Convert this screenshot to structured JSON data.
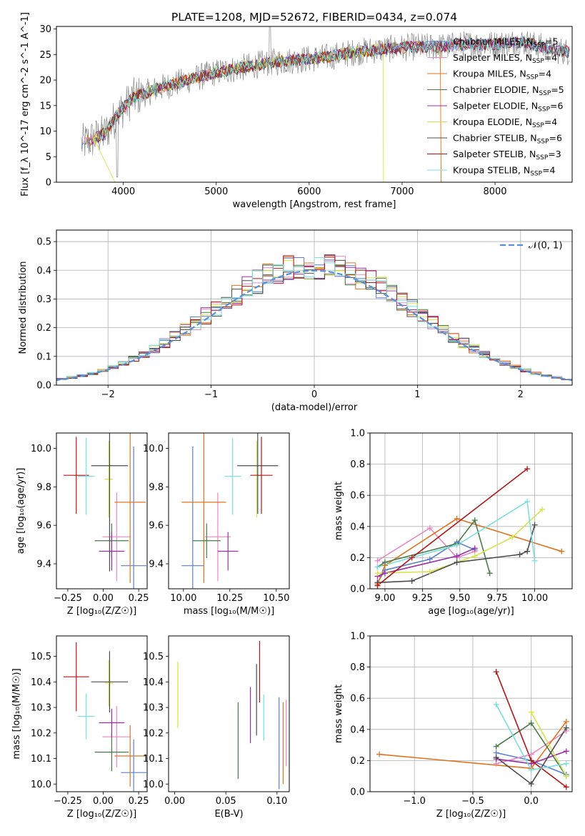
{
  "figure_title": "PLATE=1208, MJD=52672, FIBERID=0434, z=0.074",
  "colors": {
    "Chabrier MILES": "#5b7fd4",
    "Salpeter MILES": "#e589c3",
    "Kroupa MILES": "#e0731f",
    "Chabrier ELODIE": "#4a7a4a",
    "Salpeter ELODIE": "#9b2ca8",
    "Kroupa ELODIE": "#d6e34a",
    "Chabrier STELIB": "#4d4d4d",
    "Salpeter STELIB": "#b01616",
    "Kroupa STELIB": "#7adede"
  },
  "chart_data": [
    {
      "id": "spectrum",
      "type": "line",
      "title": "PLATE=1208, MJD=52672, FIBERID=0434, z=0.074",
      "xlabel": "wavelength [Angstrom, rest frame]",
      "ylabel": "Flux [f_λ 10^-17 erg cm^-2 s^-1 A^-1]",
      "xlim": [
        3280,
        8830
      ],
      "ylim": [
        0,
        30.5
      ],
      "xticks": [
        4000,
        5000,
        6000,
        7000,
        8000
      ],
      "yticks": [
        0,
        5,
        10,
        15,
        20,
        25,
        30
      ],
      "legend_position": "right",
      "continuum": {
        "x": [
          3550,
          3800,
          3950,
          4100,
          4400,
          4700,
          5000,
          5300,
          5600,
          5900,
          6200,
          6500,
          6800,
          7100,
          7400,
          7700,
          8000,
          8300,
          8600,
          8800
        ],
        "y": [
          7.5,
          9.5,
          13.5,
          16.5,
          18.5,
          20.0,
          21.5,
          22.5,
          23.5,
          24.0,
          24.5,
          25.5,
          26.0,
          26.5,
          26.5,
          27.0,
          27.0,
          27.5,
          26.0,
          25.5
        ]
      },
      "legend": [
        {
          "label": "Chabrier MILES, N",
          "ssp": "5",
          "key": "Chabrier MILES"
        },
        {
          "label": "Salpeter MILES, N",
          "ssp": "4",
          "key": "Salpeter MILES"
        },
        {
          "label": "Kroupa MILES, N",
          "ssp": "4",
          "key": "Kroupa MILES"
        },
        {
          "label": "Chabrier ELODIE, N",
          "ssp": "5",
          "key": "Chabrier ELODIE"
        },
        {
          "label": "Salpeter ELODIE, N",
          "ssp": "6",
          "key": "Salpeter ELODIE"
        },
        {
          "label": "Kroupa ELODIE, N",
          "ssp": "4",
          "key": "Kroupa ELODIE"
        },
        {
          "label": "Chabrier STELIB, N",
          "ssp": "6",
          "key": "Chabrier STELIB"
        },
        {
          "label": "Salpeter STELIB, N",
          "ssp": "3",
          "key": "Salpeter STELIB"
        },
        {
          "label": "Kroupa STELIB, N",
          "ssp": "4",
          "key": "Kroupa STELIB"
        }
      ],
      "ssp_subscript": "SSP"
    },
    {
      "id": "residuals",
      "type": "histogram",
      "xlabel": "(data-model)/error",
      "ylabel": "Normed distribution",
      "xlim": [
        -2.5,
        2.5
      ],
      "ylim": [
        0,
        0.54
      ],
      "xticks": [
        -2,
        -1,
        0,
        1,
        2
      ],
      "yticks": [
        0.0,
        0.1,
        0.2,
        0.3,
        0.4,
        0.5
      ],
      "grid": true,
      "bin_width": 0.1,
      "legend": [
        "𝒩(0, 1)"
      ],
      "legend_position": "top-right",
      "gaussian": {
        "mean": 0,
        "sigma": 1,
        "color": "#5b8ed8"
      }
    },
    {
      "id": "age_vs_z",
      "type": "errorbar",
      "xlabel": "Z [log₁₀(Z/Z☉)]",
      "ylabel": "age  [log₁₀(age/yr)]",
      "xlim": [
        -0.33,
        0.31
      ],
      "ylim": [
        9.27,
        10.08
      ],
      "xticks": [
        -0.25,
        0.0,
        0.25
      ],
      "xticklabels": [
        "−0.25",
        "0.00",
        "0.25"
      ],
      "yticks": [
        9.4,
        9.6,
        9.8,
        10.0
      ],
      "points": [
        {
          "model": "Chabrier MILES",
          "x": 0.215,
          "y": 9.39,
          "xerr": 0.09,
          "yerr": 0.62
        },
        {
          "model": "Salpeter MILES",
          "x": 0.095,
          "y": 9.54,
          "xerr": 0.1,
          "yerr": 0.23
        },
        {
          "model": "Kroupa MILES",
          "x": 0.19,
          "y": 9.72,
          "xerr": 0.11,
          "yerr": 0.42
        },
        {
          "model": "Chabrier ELODIE",
          "x": 0.06,
          "y": 9.52,
          "xerr": 0.12,
          "yerr": 0.09
        },
        {
          "model": "Salpeter ELODIE",
          "x": 0.06,
          "y": 9.465,
          "xerr": 0.09,
          "yerr": 0.1
        },
        {
          "model": "Kroupa ELODIE",
          "x": 0.04,
          "y": 9.84,
          "xerr": 0.03,
          "yerr": 0.2
        },
        {
          "model": "Chabrier STELIB",
          "x": 0.045,
          "y": 9.91,
          "xerr": 0.13,
          "yerr": 0.55
        },
        {
          "model": "Salpeter STELIB",
          "x": -0.19,
          "y": 9.86,
          "xerr": 0.09,
          "yerr": 0.2
        },
        {
          "model": "Kroupa STELIB",
          "x": -0.12,
          "y": 9.855,
          "xerr": 0.06,
          "yerr": 0.2
        }
      ]
    },
    {
      "id": "age_vs_mass",
      "type": "errorbar",
      "xlabel": "mass [log₁₀(M/M☉)]",
      "ylabel": "",
      "xlim": [
        9.92,
        10.57
      ],
      "ylim": [
        9.27,
        10.08
      ],
      "xticks": [
        10.0,
        10.25,
        10.5
      ],
      "xticklabels": [
        "10.00",
        "10.25",
        "10.50"
      ],
      "yticks": [
        9.4,
        9.6,
        9.8,
        10.0
      ],
      "points": [
        {
          "model": "Chabrier MILES",
          "x": 10.05,
          "y": 9.39,
          "xerr": 0.06,
          "yerr": 0.62
        },
        {
          "model": "Salpeter MILES",
          "x": 10.185,
          "y": 9.54,
          "xerr": 0.07,
          "yerr": 0.23
        },
        {
          "model": "Kroupa MILES",
          "x": 10.11,
          "y": 9.72,
          "xerr": 0.12,
          "yerr": 0.42
        },
        {
          "model": "Chabrier ELODIE",
          "x": 10.125,
          "y": 9.52,
          "xerr": 0.075,
          "yerr": 0.09
        },
        {
          "model": "Salpeter ELODIE",
          "x": 10.24,
          "y": 9.465,
          "xerr": 0.055,
          "yerr": 0.1
        },
        {
          "model": "Kroupa ELODIE",
          "x": 10.395,
          "y": 9.84,
          "xerr": 0.005,
          "yerr": 0.2
        },
        {
          "model": "Chabrier STELIB",
          "x": 10.4,
          "y": 9.91,
          "xerr": 0.11,
          "yerr": 0.25
        },
        {
          "model": "Salpeter STELIB",
          "x": 10.42,
          "y": 9.86,
          "xerr": 0.06,
          "yerr": 0.2
        },
        {
          "model": "Kroupa STELIB",
          "x": 10.265,
          "y": 9.855,
          "xerr": 0.045,
          "yerr": 0.2
        }
      ]
    },
    {
      "id": "mass_weight_vs_age",
      "type": "line",
      "xlabel": "age  [log₁₀(age/yr)]",
      "ylabel": "mass weight",
      "xlim": [
        8.9,
        10.25
      ],
      "ylim": [
        0,
        1.0
      ],
      "xticks": [
        9.0,
        9.25,
        9.5,
        9.75,
        10.0
      ],
      "xticklabels": [
        "9.00",
        "9.25",
        "9.50",
        "9.75",
        "10.00"
      ],
      "yticks": [
        0.0,
        0.2,
        0.4,
        0.6,
        0.8,
        1.0
      ],
      "grid": true,
      "series": [
        {
          "model": "Chabrier MILES",
          "x": [
            8.95,
            9.0,
            9.3,
            9.48,
            9.6
          ],
          "y": [
            0.04,
            0.12,
            0.19,
            0.3,
            0.25
          ]
        },
        {
          "model": "Salpeter MILES",
          "x": [
            8.95,
            9.3,
            9.48,
            9.6
          ],
          "y": [
            0.18,
            0.39,
            0.2,
            0.24
          ]
        },
        {
          "model": "Kroupa MILES",
          "x": [
            8.95,
            9.0,
            9.48,
            10.18
          ],
          "y": [
            0.03,
            0.15,
            0.45,
            0.24
          ]
        },
        {
          "model": "Chabrier ELODIE",
          "x": [
            8.95,
            9.0,
            9.48,
            9.6,
            9.7
          ],
          "y": [
            0.14,
            0.17,
            0.29,
            0.44,
            0.1
          ]
        },
        {
          "model": "Salpeter ELODIE",
          "x": [
            8.95,
            9.0,
            9.48,
            9.6
          ],
          "y": [
            0.08,
            0.1,
            0.21,
            0.26
          ]
        },
        {
          "model": "Kroupa ELODIE",
          "x": [
            8.95,
            9.3,
            9.6,
            9.85,
            10.05
          ],
          "y": [
            0.1,
            0.11,
            0.21,
            0.33,
            0.51
          ]
        },
        {
          "model": "Chabrier STELIB",
          "x": [
            8.95,
            9.18,
            9.48,
            9.9,
            9.95,
            10.0
          ],
          "y": [
            0.04,
            0.05,
            0.17,
            0.22,
            0.24,
            0.41
          ]
        },
        {
          "model": "Salpeter STELIB",
          "x": [
            8.95,
            9.18,
            9.95
          ],
          "y": [
            0.02,
            0.2,
            0.77
          ]
        },
        {
          "model": "Kroupa STELIB",
          "x": [
            8.95,
            9.48,
            9.95,
            10.0
          ],
          "y": [
            0.14,
            0.28,
            0.56,
            0.18
          ]
        }
      ]
    },
    {
      "id": "mass_vs_z",
      "type": "errorbar",
      "xlabel": "Z [log₁₀(Z/Z☉)]",
      "ylabel": "mass [log₁₀(M/M☉)]",
      "xlim": [
        -0.33,
        0.31
      ],
      "ylim": [
        9.97,
        10.58
      ],
      "xticks": [
        -0.25,
        0.0,
        0.25
      ],
      "xticklabels": [
        "−0.25",
        "0.00",
        "0.25"
      ],
      "yticks": [
        10.0,
        10.1,
        10.2,
        10.3,
        10.4,
        10.5
      ],
      "points": [
        {
          "model": "Chabrier MILES",
          "x": 0.215,
          "y": 10.045,
          "xerr": 0.09,
          "yerr": 0.13
        },
        {
          "model": "Salpeter MILES",
          "x": 0.095,
          "y": 10.185,
          "xerr": 0.1,
          "yerr": 0.12
        },
        {
          "model": "Kroupa MILES",
          "x": 0.19,
          "y": 10.11,
          "xerr": 0.11,
          "yerr": 0.12
        },
        {
          "model": "Chabrier ELODIE",
          "x": 0.06,
          "y": 10.125,
          "xerr": 0.12,
          "yerr": 0.075
        },
        {
          "model": "Salpeter ELODIE",
          "x": 0.06,
          "y": 10.24,
          "xerr": 0.09,
          "yerr": 0.055
        },
        {
          "model": "Kroupa ELODIE",
          "x": 0.04,
          "y": 10.395,
          "xerr": 0.03,
          "yerr": 0.09
        },
        {
          "model": "Chabrier STELIB",
          "x": 0.045,
          "y": 10.4,
          "xerr": 0.13,
          "yerr": 0.12
        },
        {
          "model": "Salpeter STELIB",
          "x": -0.19,
          "y": 10.42,
          "xerr": 0.09,
          "yerr": 0.135
        },
        {
          "model": "Kroupa STELIB",
          "x": -0.12,
          "y": 10.265,
          "xerr": 0.06,
          "yerr": 0.09
        }
      ]
    },
    {
      "id": "mass_vs_ebv",
      "type": "errorbar",
      "xlabel": "E(B-V)",
      "ylabel": "",
      "xlim": [
        -0.006,
        0.112
      ],
      "ylim": [
        9.97,
        10.58
      ],
      "xticks": [
        0.0,
        0.05,
        0.1
      ],
      "xticklabels": [
        "0.00",
        "0.05",
        "0.10"
      ],
      "yticks": [
        10.0,
        10.1,
        10.2,
        10.3,
        10.4,
        10.5
      ],
      "points": [
        {
          "model": "Chabrier MILES",
          "x": 0.102,
          "y": 10.16,
          "xerr": 0.0,
          "yerr": 0.18
        },
        {
          "model": "Salpeter MILES",
          "x": 0.109,
          "y": 10.2,
          "xerr": 0.0,
          "yerr": 0.13
        },
        {
          "model": "Kroupa MILES",
          "x": 0.106,
          "y": 10.16,
          "xerr": 0.0,
          "yerr": 0.16
        },
        {
          "model": "Chabrier ELODIE",
          "x": 0.062,
          "y": 10.17,
          "xerr": 0.0,
          "yerr": 0.15
        },
        {
          "model": "Salpeter ELODIE",
          "x": 0.074,
          "y": 10.27,
          "xerr": 0.0,
          "yerr": 0.11
        },
        {
          "model": "Kroupa ELODIE",
          "x": 0.003,
          "y": 10.35,
          "xerr": 0.0,
          "yerr": 0.13
        },
        {
          "model": "Chabrier STELIB",
          "x": 0.08,
          "y": 10.33,
          "xerr": 0.0,
          "yerr": 0.14
        },
        {
          "model": "Salpeter STELIB",
          "x": 0.083,
          "y": 10.44,
          "xerr": 0.0,
          "yerr": 0.12
        },
        {
          "model": "Kroupa STELIB",
          "x": 0.087,
          "y": 10.26,
          "xerr": 0.0,
          "yerr": 0.09
        }
      ]
    },
    {
      "id": "mass_weight_vs_z",
      "type": "line",
      "xlabel": "Z [log₁₀(Z/Z☉)]",
      "ylabel": "mass weight",
      "xlim": [
        -1.38,
        0.35
      ],
      "ylim": [
        0,
        1.0
      ],
      "xticks": [
        -1.0,
        -0.5,
        0.0
      ],
      "xticklabels": [
        "−1.0",
        "−0.5",
        "0.0"
      ],
      "yticks": [
        0.0,
        0.2,
        0.4,
        0.6,
        0.8,
        1.0
      ],
      "grid": true,
      "series": [
        {
          "model": "Chabrier MILES",
          "x": [
            -0.3,
            0.0,
            0.3
          ],
          "y": [
            0.25,
            0.2,
            0.11
          ]
        },
        {
          "model": "Salpeter MILES",
          "x": [
            -0.3,
            0.0,
            0.3
          ],
          "y": [
            0.18,
            0.24,
            0.39
          ]
        },
        {
          "model": "Kroupa MILES",
          "x": [
            -1.3,
            0.0,
            0.3
          ],
          "y": [
            0.24,
            0.15,
            0.45
          ]
        },
        {
          "model": "Chabrier ELODIE",
          "x": [
            -0.3,
            0.0,
            0.3
          ],
          "y": [
            0.29,
            0.44,
            0.1
          ]
        },
        {
          "model": "Salpeter ELODIE",
          "x": [
            -0.3,
            0.0,
            0.3
          ],
          "y": [
            0.21,
            0.18,
            0.26
          ]
        },
        {
          "model": "Kroupa ELODIE",
          "x": [
            0.0,
            0.3
          ],
          "y": [
            0.51,
            0.1
          ]
        },
        {
          "model": "Chabrier STELIB",
          "x": [
            -0.3,
            0.0,
            0.3
          ],
          "y": [
            0.22,
            0.05,
            0.41
          ]
        },
        {
          "model": "Salpeter STELIB",
          "x": [
            -0.3,
            0.0,
            0.3
          ],
          "y": [
            0.77,
            0.2,
            0.03
          ]
        },
        {
          "model": "Kroupa STELIB",
          "x": [
            -0.3,
            0.0,
            0.3
          ],
          "y": [
            0.56,
            0.14,
            0.18
          ]
        }
      ]
    }
  ]
}
